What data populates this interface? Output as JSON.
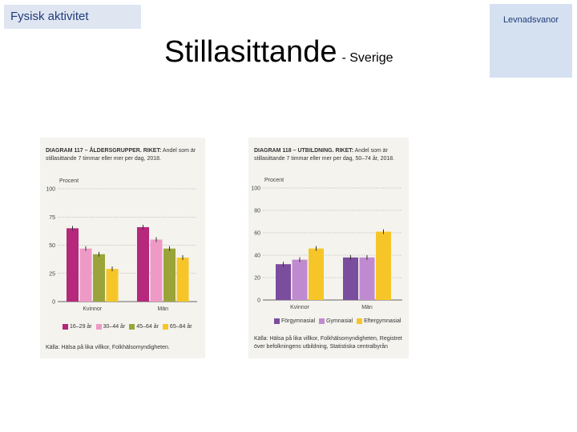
{
  "header": {
    "section_tag": "Fysisk aktivitet",
    "brand": "Levnadsvanor",
    "title_main": "Stillasittande",
    "title_sub": "- Sverige"
  },
  "chart_data": [
    {
      "type": "bar",
      "title_bold": "DIAGRAM 117 – ÅLDERSGRUPPER. RIKET:",
      "title_rest": "Andel som är stillasittande 7 timmar eller mer per dag, 2018.",
      "ylabel": "Procent",
      "ylim": [
        0,
        100
      ],
      "yticks": [
        0,
        25,
        50,
        75,
        100
      ],
      "categories": [
        "Kvinnor",
        "Män"
      ],
      "series": [
        {
          "name": "16–29 år",
          "color": "#b5287c",
          "values": [
            65,
            66
          ]
        },
        {
          "name": "30–44 år",
          "color": "#ee9ac6",
          "values": [
            47,
            55
          ]
        },
        {
          "name": "45–64 år",
          "color": "#9aa43a",
          "values": [
            42,
            47
          ]
        },
        {
          "name": "65–84 år",
          "color": "#f6c628",
          "values": [
            29,
            39
          ]
        }
      ],
      "source": "Källa: Hälsa på lika villkor, Folkhälsomyndigheten.",
      "grid": true,
      "legend": "bottom"
    },
    {
      "type": "bar",
      "title_bold": "DIAGRAM 118 – UTBILDNING. RIKET:",
      "title_rest": "Andel som är stillasittande 7 timmar eller mer per dag, 50–74 år, 2018.",
      "ylabel": "Procent",
      "ylim": [
        0,
        100
      ],
      "yticks": [
        0,
        20,
        40,
        60,
        80,
        100
      ],
      "categories": [
        "Kvinnor",
        "Män"
      ],
      "series": [
        {
          "name": "Förgymnasial",
          "color": "#7a4d9e",
          "values": [
            32,
            38
          ]
        },
        {
          "name": "Gymnasial",
          "color": "#c08ad0",
          "values": [
            36,
            38
          ]
        },
        {
          "name": "Eftergymnasial",
          "color": "#f6c628",
          "values": [
            46,
            61
          ]
        }
      ],
      "source": "Källa: Hälsa på lika villkor, Folkhälsomyndigheten, Registret över befolkningens utbildning, Statistiska centralbyrån",
      "grid": true,
      "legend": "bottom"
    }
  ]
}
